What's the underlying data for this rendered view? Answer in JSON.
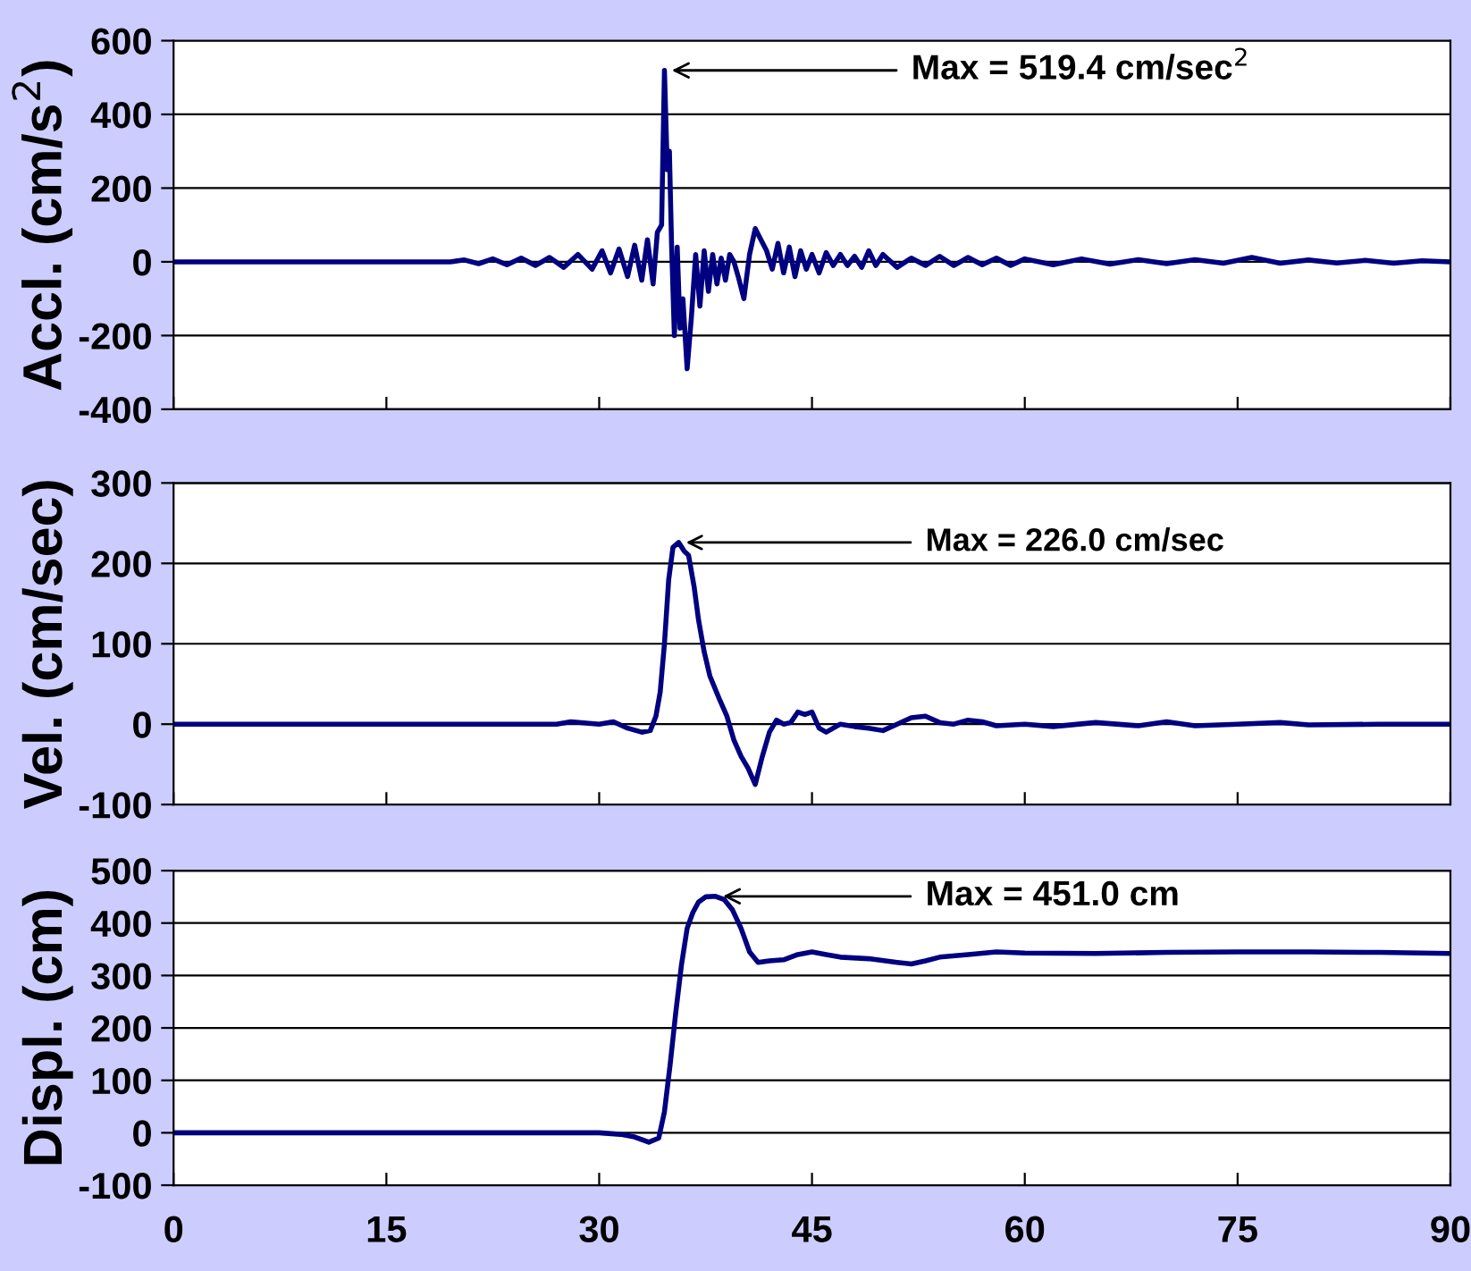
{
  "chart_data": [
    {
      "type": "line",
      "ylabel": "Accl. (cm/s$^{2}$)",
      "annotations": [
        {
          "text": "Max = 519.4 cm/sec$^{2}$",
          "x": 34.6,
          "y": 519.4
        }
      ],
      "xlim": [
        0,
        90
      ],
      "xticks": [
        0,
        15,
        30,
        45,
        60,
        75,
        90
      ],
      "ylim": [
        -400,
        600
      ],
      "yticks": [
        -400,
        -200,
        0,
        200,
        400,
        600
      ],
      "grid": "y",
      "tick_labels": "y",
      "series": [
        {
          "color": "#000080",
          "x": [
            0,
            10,
            19.5,
            20.5,
            21.5,
            22.5,
            23.5,
            24.5,
            25.5,
            26.5,
            27.5,
            28.5,
            29.5,
            30.2,
            30.8,
            31.4,
            32,
            32.5,
            33,
            33.4,
            33.8,
            34.1,
            34.4,
            34.6,
            34.8,
            34.95,
            35.1,
            35.3,
            35.5,
            35.7,
            35.9,
            36.2,
            36.5,
            36.8,
            37.1,
            37.4,
            37.7,
            38,
            38.3,
            38.6,
            38.9,
            39.2,
            39.5,
            39.8,
            40.2,
            40.6,
            41,
            41.4,
            41.8,
            42.2,
            42.6,
            43,
            43.4,
            43.8,
            44.2,
            44.6,
            45,
            45.5,
            46,
            46.5,
            47,
            47.5,
            48,
            48.5,
            49,
            49.5,
            50,
            51,
            52,
            53,
            54,
            55,
            56,
            57,
            58,
            59,
            60,
            62,
            64,
            66,
            68,
            70,
            72,
            74,
            76,
            78,
            80,
            82,
            84,
            86,
            88,
            90
          ],
          "values": [
            0,
            0,
            0,
            5,
            -5,
            8,
            -8,
            10,
            -10,
            12,
            -15,
            20,
            -20,
            30,
            -30,
            35,
            -40,
            45,
            -50,
            60,
            -60,
            80,
            100,
            519.4,
            250,
            300,
            50,
            -200,
            40,
            -180,
            -100,
            -290,
            -150,
            20,
            -120,
            30,
            -80,
            20,
            -60,
            10,
            -50,
            20,
            0,
            -40,
            -100,
            20,
            90,
            60,
            30,
            -20,
            50,
            -30,
            40,
            -40,
            30,
            -20,
            20,
            -30,
            25,
            -10,
            20,
            -10,
            15,
            -15,
            30,
            -10,
            20,
            -15,
            10,
            -10,
            15,
            -10,
            12,
            -8,
            10,
            -10,
            8,
            -8,
            8,
            -6,
            6,
            -5,
            6,
            -4,
            12,
            -4,
            5,
            -3,
            4,
            -4,
            3,
            0
          ]
        }
      ]
    },
    {
      "type": "line",
      "ylabel": "Vel. (cm/sec)",
      "annotations": [
        {
          "text": "Max = 226.0 cm/sec",
          "x": 35.6,
          "y": 226.0
        }
      ],
      "xlim": [
        0,
        90
      ],
      "xticks": [
        0,
        15,
        30,
        45,
        60,
        75,
        90
      ],
      "ylim": [
        -100,
        300
      ],
      "yticks": [
        -100,
        0,
        100,
        200,
        300
      ],
      "grid": "y",
      "tick_labels": "y",
      "series": [
        {
          "color": "#000080",
          "x": [
            0,
            20,
            27,
            28,
            30,
            31,
            32,
            33,
            33.6,
            34,
            34.3,
            34.6,
            34.9,
            35.2,
            35.6,
            36,
            36.3,
            36.7,
            37,
            37.4,
            37.8,
            38.5,
            39,
            39.5,
            40,
            40.5,
            41,
            41.5,
            42,
            42.5,
            43,
            43.5,
            44,
            44.5,
            45,
            45.5,
            46,
            46.5,
            47,
            48,
            49,
            50,
            51,
            52,
            53,
            54,
            55,
            56,
            57,
            58,
            60,
            62,
            65,
            68,
            70,
            72,
            75,
            78,
            80,
            85,
            90
          ],
          "values": [
            0,
            0,
            0,
            3,
            0,
            3,
            -5,
            -10,
            -8,
            10,
            40,
            100,
            180,
            220,
            226,
            215,
            210,
            170,
            130,
            90,
            60,
            30,
            10,
            -20,
            -40,
            -55,
            -75,
            -40,
            -10,
            5,
            0,
            2,
            15,
            12,
            15,
            -5,
            -10,
            -5,
            0,
            -3,
            -5,
            -8,
            0,
            8,
            10,
            2,
            0,
            5,
            3,
            -2,
            0,
            -3,
            2,
            -2,
            3,
            -2,
            0,
            2,
            -1,
            0,
            0
          ]
        }
      ]
    },
    {
      "type": "line",
      "ylabel": "Displ. (cm)",
      "annotations": [
        {
          "text": "Max = 451.0 cm",
          "x": 38.2,
          "y": 451.0
        }
      ],
      "xlim": [
        0,
        90
      ],
      "xticks": [
        0,
        15,
        30,
        45,
        60,
        75,
        90
      ],
      "ylim": [
        -100,
        500
      ],
      "yticks": [
        -100,
        0,
        100,
        200,
        300,
        400,
        500
      ],
      "grid": "y",
      "series": [
        {
          "color": "#000080",
          "x": [
            0,
            15,
            28,
            30,
            31.5,
            32.5,
            33.5,
            34.2,
            34.6,
            35,
            35.4,
            35.8,
            36.2,
            36.6,
            37,
            37.5,
            38.2,
            38.8,
            39.4,
            40,
            40.6,
            41.2,
            42,
            43,
            44,
            45,
            46,
            47,
            49,
            51,
            52,
            53,
            54,
            56,
            58,
            60,
            65,
            70,
            75,
            80,
            85,
            90
          ],
          "values": [
            0,
            0,
            0,
            0,
            -3,
            -8,
            -18,
            -10,
            40,
            130,
            230,
            320,
            390,
            420,
            440,
            450,
            451,
            445,
            425,
            390,
            345,
            325,
            328,
            330,
            340,
            345,
            340,
            335,
            332,
            325,
            322,
            328,
            335,
            340,
            345,
            343,
            342,
            344,
            345,
            345,
            344,
            342
          ]
        }
      ]
    }
  ]
}
